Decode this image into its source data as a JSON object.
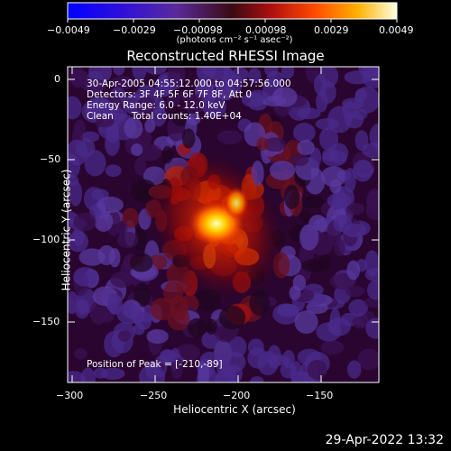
{
  "colorbar": {
    "ticks": [
      "−0.0049",
      "−0.0029",
      "−0.00098",
      "0.00098",
      "0.0029",
      "0.0049"
    ],
    "units": "(photons cm⁻² s⁻¹ asec⁻²)"
  },
  "title": "Reconstructed RHESSI Image",
  "info": {
    "time": "30-Apr-2005 04:55:12.000 to 04:57:56.000",
    "detectors": "Detectors: 3F 4F 5F 6F 7F 8F, Att 0",
    "energy": "Energy Range: 6.0 - 12.0 keV",
    "clean": "Clean      Total counts: 1.40E+04"
  },
  "peak_label": "Position of Peak = [-210,-89]",
  "x_axis": {
    "label": "Heliocentric X (arcsec)",
    "ticks": [
      "−300",
      "−250",
      "−200",
      "−150"
    ]
  },
  "y_axis": {
    "label": "Heliocentric Y (arcsec)",
    "ticks": [
      "0",
      "−50",
      "−100",
      "−150"
    ]
  },
  "timestamp": "29-Apr-2022 13:32"
}
